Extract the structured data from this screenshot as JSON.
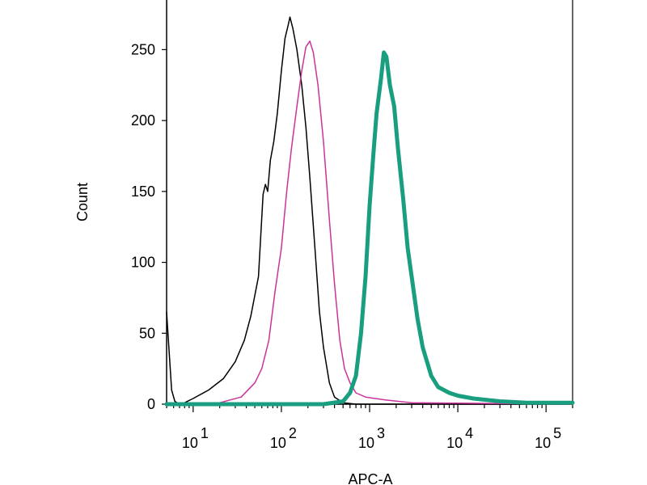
{
  "chart_data": {
    "type": "line",
    "title": "",
    "xlabel": "APC-A",
    "ylabel": "Count",
    "xscale": "log",
    "xlim": [
      5,
      200000
    ],
    "ylim": [
      0,
      285
    ],
    "grid": false,
    "legend": "none",
    "x_ticks": [
      {
        "value": 10,
        "base": "10",
        "exp": "1"
      },
      {
        "value": 100,
        "base": "10",
        "exp": "2"
      },
      {
        "value": 1000,
        "base": "10",
        "exp": "3"
      },
      {
        "value": 10000,
        "base": "10",
        "exp": "4"
      },
      {
        "value": 100000,
        "base": "10",
        "exp": "5"
      }
    ],
    "y_ticks": [
      {
        "value": 0,
        "label": "0"
      },
      {
        "value": 50,
        "label": "50"
      },
      {
        "value": 100,
        "label": "100"
      },
      {
        "value": 150,
        "label": "150"
      },
      {
        "value": 200,
        "label": "200"
      },
      {
        "value": 250,
        "label": "250"
      }
    ],
    "series": [
      {
        "color": "#000000",
        "width": 1.5,
        "points": [
          [
            5,
            65
          ],
          [
            5.3,
            40
          ],
          [
            5.7,
            10
          ],
          [
            6.2,
            2
          ],
          [
            7,
            0
          ],
          [
            8,
            1
          ],
          [
            10,
            4
          ],
          [
            15,
            10
          ],
          [
            22,
            18
          ],
          [
            30,
            30
          ],
          [
            38,
            45
          ],
          [
            45,
            62
          ],
          [
            55,
            90
          ],
          [
            62,
            148
          ],
          [
            66,
            155
          ],
          [
            70,
            150
          ],
          [
            75,
            172
          ],
          [
            82,
            185
          ],
          [
            90,
            205
          ],
          [
            100,
            235
          ],
          [
            110,
            258
          ],
          [
            120,
            268
          ],
          [
            125,
            273
          ],
          [
            135,
            265
          ],
          [
            150,
            250
          ],
          [
            170,
            225
          ],
          [
            190,
            195
          ],
          [
            210,
            160
          ],
          [
            240,
            110
          ],
          [
            270,
            65
          ],
          [
            300,
            40
          ],
          [
            350,
            15
          ],
          [
            400,
            5
          ],
          [
            500,
            1
          ],
          [
            700,
            0
          ],
          [
            200000,
            0
          ]
        ]
      },
      {
        "color": "#cc3399",
        "width": 1.5,
        "points": [
          [
            5,
            0
          ],
          [
            20,
            1
          ],
          [
            35,
            5
          ],
          [
            50,
            15
          ],
          [
            60,
            25
          ],
          [
            72,
            45
          ],
          [
            85,
            80
          ],
          [
            100,
            110
          ],
          [
            115,
            150
          ],
          [
            130,
            180
          ],
          [
            150,
            210
          ],
          [
            170,
            235
          ],
          [
            190,
            252
          ],
          [
            210,
            256
          ],
          [
            230,
            248
          ],
          [
            260,
            225
          ],
          [
            300,
            185
          ],
          [
            350,
            130
          ],
          [
            400,
            85
          ],
          [
            460,
            45
          ],
          [
            520,
            25
          ],
          [
            600,
            15
          ],
          [
            700,
            8
          ],
          [
            900,
            5
          ],
          [
            1500,
            3
          ],
          [
            3000,
            1
          ],
          [
            200000,
            0
          ]
        ]
      },
      {
        "color": "#1a9e80",
        "width": 5,
        "points": [
          [
            5,
            0
          ],
          [
            300,
            0
          ],
          [
            500,
            2
          ],
          [
            600,
            8
          ],
          [
            700,
            20
          ],
          [
            800,
            50
          ],
          [
            900,
            90
          ],
          [
            1000,
            140
          ],
          [
            1100,
            175
          ],
          [
            1200,
            205
          ],
          [
            1350,
            230
          ],
          [
            1450,
            248
          ],
          [
            1550,
            245
          ],
          [
            1700,
            225
          ],
          [
            1900,
            210
          ],
          [
            2100,
            180
          ],
          [
            2400,
            145
          ],
          [
            2700,
            110
          ],
          [
            3000,
            90
          ],
          [
            3500,
            60
          ],
          [
            4000,
            40
          ],
          [
            5000,
            20
          ],
          [
            6000,
            12
          ],
          [
            8000,
            8
          ],
          [
            10000,
            6
          ],
          [
            15000,
            4
          ],
          [
            30000,
            2
          ],
          [
            60000,
            1
          ],
          [
            200000,
            1
          ]
        ]
      }
    ]
  }
}
